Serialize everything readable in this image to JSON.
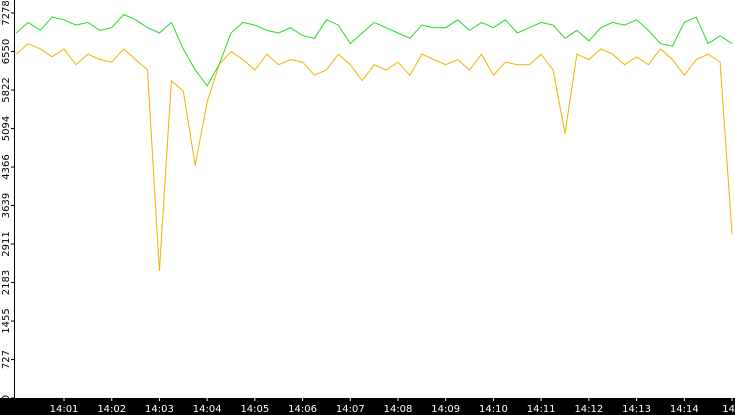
{
  "chart_data": {
    "type": "line",
    "categories": [
      null,
      null,
      null,
      null,
      "14:01",
      null,
      null,
      null,
      "14:02",
      null,
      null,
      null,
      "14:03",
      null,
      null,
      null,
      "14:04",
      null,
      null,
      null,
      "14:05",
      null,
      null,
      null,
      "14:06",
      null,
      null,
      null,
      "14:07",
      null,
      null,
      null,
      "14:08",
      null,
      null,
      null,
      "14:09",
      null,
      null,
      null,
      "14:10",
      null,
      null,
      null,
      "14:11",
      null,
      null,
      null,
      "14:12",
      null,
      null,
      null,
      "14:13",
      null,
      null,
      null,
      "14:14",
      null,
      null,
      null,
      "14"
    ],
    "series": [
      {
        "color": "#f0b400",
        "values": [
          6500,
          6700,
          6600,
          6450,
          6600,
          6300,
          6500,
          6400,
          6350,
          6600,
          6400,
          6200,
          2400,
          6000,
          5800,
          4400,
          5600,
          6300,
          6550,
          6400,
          6200,
          6500,
          6300,
          6400,
          6350,
          6100,
          6200,
          6500,
          6300,
          6000,
          6300,
          6200,
          6350,
          6100,
          6500,
          6400,
          6300,
          6400,
          6200,
          6500,
          6100,
          6350,
          6300,
          6300,
          6500,
          6200,
          5000,
          6500,
          6400,
          6600,
          6500,
          6300,
          6450,
          6300,
          6600,
          6400,
          6100,
          6400,
          6500,
          6350,
          3100
        ]
      },
      {
        "color": "#22dd22",
        "values": [
          6900,
          7100,
          6950,
          7200,
          7150,
          7050,
          7100,
          6950,
          7000,
          7250,
          7150,
          7000,
          6900,
          7100,
          6600,
          6200,
          5900,
          6300,
          6900,
          7100,
          7050,
          6950,
          6900,
          7000,
          6850,
          6800,
          7150,
          7050,
          6700,
          6900,
          7100,
          7000,
          6900,
          6800,
          7050,
          7000,
          7000,
          7150,
          6950,
          7100,
          7000,
          7150,
          6900,
          7000,
          7100,
          7050,
          6800,
          6950,
          6750,
          7000,
          7100,
          7050,
          7150,
          6950,
          6700,
          6650,
          7100,
          7200,
          6700,
          6850,
          6700
        ]
      }
    ],
    "ylim": [
      0,
      7524
    ],
    "yticks": [
      0,
      727,
      1455,
      2183,
      2911,
      3639,
      4366,
      5094,
      5822,
      6550,
      7278
    ]
  }
}
